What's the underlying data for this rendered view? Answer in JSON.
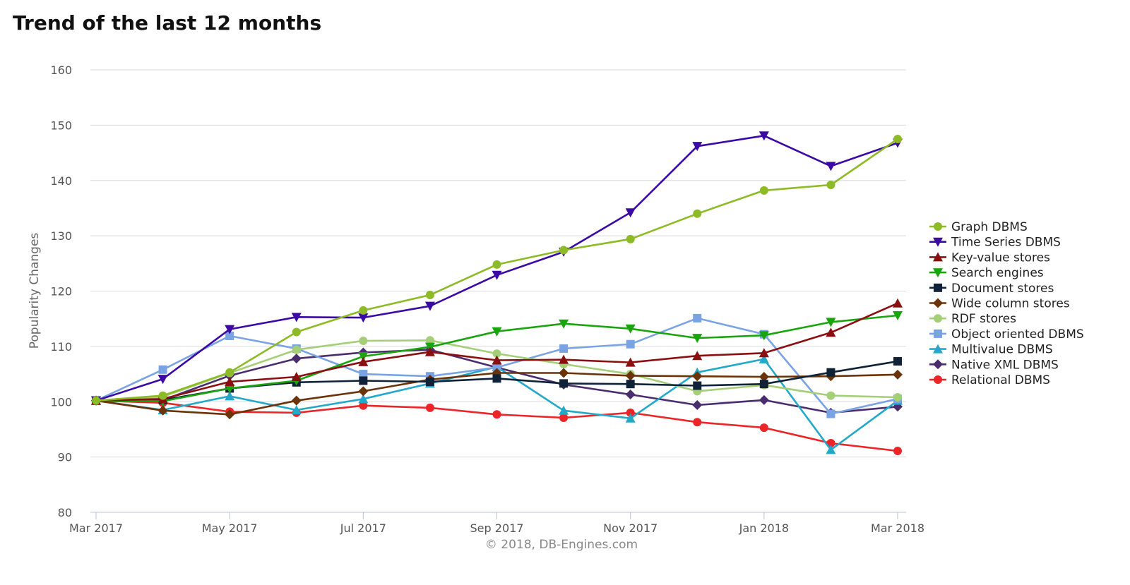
{
  "title": "Trend of the last 12 months",
  "credit": "© 2018, DB-Engines.com",
  "chart_data": {
    "type": "line",
    "ylabel": "Popularity Changes",
    "xlabel": "",
    "ylim": [
      80,
      160
    ],
    "yticks": [
      80,
      90,
      100,
      110,
      120,
      130,
      140,
      150,
      160
    ],
    "x": [
      "Mar 2017",
      "Apr 2017",
      "May 2017",
      "Jun 2017",
      "Jul 2017",
      "Aug 2017",
      "Sep 2017",
      "Oct 2017",
      "Nov 2017",
      "Dec 2017",
      "Jan 2018",
      "Feb 2018",
      "Mar 2018"
    ],
    "xtick_labels": [
      "Mar 2017",
      "May 2017",
      "Jul 2017",
      "Sep 2017",
      "Nov 2017",
      "Jan 2018",
      "Mar 2018"
    ],
    "grid": true,
    "legend_position": "right",
    "series": [
      {
        "name": "Graph DBMS",
        "color": "#8dbb25",
        "marker": "circle",
        "values": [
          100.2,
          101.1,
          105.3,
          112.6,
          116.5,
          119.3,
          124.8,
          127.4,
          129.4,
          134.0,
          138.2,
          139.2,
          147.5
        ]
      },
      {
        "name": "Time Series DBMS",
        "color": "#3b0aa4",
        "marker": "triangle-down",
        "values": [
          100.2,
          104.1,
          113.1,
          115.3,
          115.2,
          117.3,
          122.9,
          127.1,
          134.2,
          146.2,
          148.1,
          142.6,
          146.8
        ]
      },
      {
        "name": "Key-value stores",
        "color": "#8b0f10",
        "marker": "triangle",
        "values": [
          100.2,
          100.5,
          103.6,
          104.5,
          107.2,
          109.0,
          107.5,
          107.6,
          107.1,
          108.3,
          108.8,
          112.5,
          117.8
        ]
      },
      {
        "name": "Search engines",
        "color": "#1aa50f",
        "marker": "triangle-down",
        "values": [
          100.2,
          100.1,
          102.4,
          103.8,
          108.2,
          109.9,
          112.7,
          114.1,
          113.2,
          111.5,
          112.0,
          114.4,
          115.6
        ]
      },
      {
        "name": "Document stores",
        "color": "#0f2238",
        "marker": "square",
        "values": [
          100.2,
          100.3,
          102.4,
          103.5,
          103.8,
          103.6,
          104.2,
          103.3,
          103.2,
          102.9,
          103.2,
          105.3,
          107.3
        ]
      },
      {
        "name": "Wide column stores",
        "color": "#6b3308",
        "marker": "diamond",
        "values": [
          100.2,
          98.4,
          97.7,
          100.2,
          101.9,
          104.0,
          105.2,
          105.2,
          104.7,
          104.6,
          104.5,
          104.6,
          104.9
        ]
      },
      {
        "name": "RDF stores",
        "color": "#a4cf77",
        "marker": "circle",
        "values": [
          100.2,
          100.9,
          105.2,
          109.4,
          111.0,
          111.1,
          108.7,
          106.8,
          105.0,
          101.9,
          103.0,
          101.1,
          100.8
        ]
      },
      {
        "name": "Object oriented DBMS",
        "color": "#7aa3e3",
        "marker": "square",
        "values": [
          100.2,
          105.8,
          111.9,
          109.6,
          105.0,
          104.6,
          106.2,
          109.6,
          110.4,
          115.1,
          112.2,
          97.8,
          100.5
        ]
      },
      {
        "name": "Multivalue DBMS",
        "color": "#22a9c9",
        "marker": "triangle",
        "values": [
          100.2,
          98.5,
          101.0,
          98.5,
          100.5,
          103.3,
          106.3,
          98.4,
          97.0,
          105.3,
          107.7,
          91.3,
          100.2
        ]
      },
      {
        "name": "Native XML DBMS",
        "color": "#4a2d6e",
        "marker": "diamond",
        "values": [
          100.2,
          100.3,
          104.7,
          107.8,
          108.9,
          109.4,
          106.2,
          103.1,
          101.3,
          99.4,
          100.3,
          98.0,
          99.1
        ]
      },
      {
        "name": "Relational DBMS",
        "color": "#ec2528",
        "marker": "circle",
        "values": [
          100.2,
          99.8,
          98.2,
          98.0,
          99.3,
          98.9,
          97.7,
          97.1,
          98.0,
          96.3,
          95.3,
          92.5,
          91.1
        ]
      }
    ]
  }
}
